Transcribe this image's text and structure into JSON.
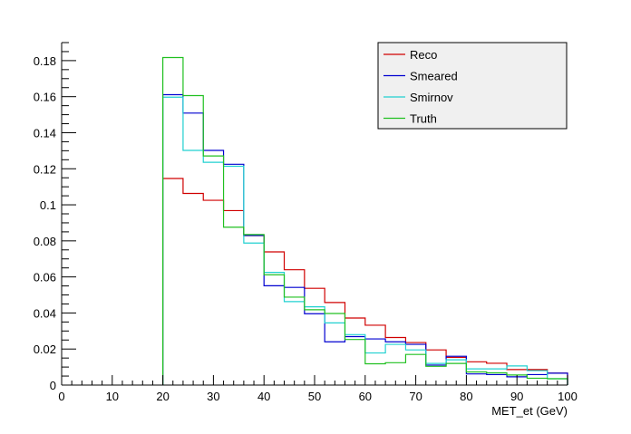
{
  "chart_data": {
    "type": "line",
    "xlabel": "MET_et (GeV)",
    "ylabel": "",
    "xlim": [
      0,
      100
    ],
    "ylim": [
      0,
      0.19
    ],
    "x_ticks": [
      "0",
      "10",
      "20",
      "30",
      "40",
      "50",
      "60",
      "70",
      "80",
      "90",
      "100"
    ],
    "y_ticks": [
      "0",
      "0.02",
      "0.04",
      "0.06",
      "0.08",
      "0.1",
      "0.12",
      "0.14",
      "0.16",
      "0.18"
    ],
    "bin_edges": [
      20,
      24,
      28,
      32,
      36,
      40,
      44,
      48,
      52,
      56,
      60,
      64,
      68,
      72,
      76,
      80,
      84,
      88,
      92,
      96,
      100
    ],
    "legend_position": "top-right",
    "series": [
      {
        "name": "Reco",
        "color": "#d00000",
        "values": [
          0.1146,
          0.1063,
          0.1025,
          0.0968,
          0.0829,
          0.0739,
          0.064,
          0.0537,
          0.0458,
          0.0372,
          0.0332,
          0.0264,
          0.0236,
          0.0195,
          0.0154,
          0.0129,
          0.0121,
          0.0086,
          0.0086,
          0.0066
        ]
      },
      {
        "name": "Smeared",
        "color": "#0000d0",
        "values": [
          0.1611,
          0.1509,
          0.1302,
          0.1225,
          0.083,
          0.0551,
          0.0542,
          0.0396,
          0.024,
          0.0269,
          0.0256,
          0.024,
          0.0226,
          0.0111,
          0.016,
          0.0062,
          0.0058,
          0.0046,
          0.0058,
          0.0066
        ]
      },
      {
        "name": "Smirnov",
        "color": "#20d0d0",
        "values": [
          0.1597,
          0.1302,
          0.1236,
          0.1214,
          0.0788,
          0.0625,
          0.0463,
          0.0434,
          0.0345,
          0.028,
          0.0178,
          0.0226,
          0.0195,
          0.012,
          0.014,
          0.009,
          0.009,
          0.0106,
          0.008,
          0.0035
        ]
      },
      {
        "name": "Truth",
        "color": "#20c020",
        "values": [
          0.1817,
          0.1606,
          0.1271,
          0.0876,
          0.0835,
          0.0612,
          0.0488,
          0.0418,
          0.0397,
          0.0253,
          0.0118,
          0.0124,
          0.017,
          0.0104,
          0.012,
          0.0073,
          0.0068,
          0.0056,
          0.0038,
          0.0035
        ]
      }
    ]
  }
}
